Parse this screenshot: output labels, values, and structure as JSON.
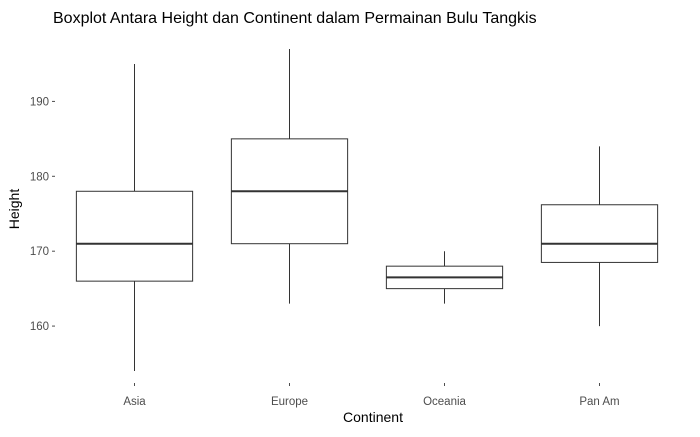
{
  "chart_data": {
    "type": "boxplot",
    "title": "Boxplot Antara Height dan Continent dalam Permainan Bulu Tangkis",
    "xlabel": "Continent",
    "ylabel": "Height",
    "categories": [
      "Asia",
      "Europe",
      "Oceania",
      "Pan Am"
    ],
    "boxes": [
      {
        "category": "Asia",
        "min": 154,
        "q1": 166,
        "median": 171,
        "q3": 178,
        "max": 195
      },
      {
        "category": "Europe",
        "min": 163,
        "q1": 171,
        "median": 178,
        "q3": 185,
        "max": 197
      },
      {
        "category": "Oceania",
        "min": 163,
        "q1": 165,
        "median": 166.5,
        "q3": 168,
        "max": 170
      },
      {
        "category": "Pan Am",
        "min": 160,
        "q1": 168.5,
        "median": 171,
        "q3": 176.2,
        "max": 184
      }
    ],
    "yticks": [
      160,
      170,
      180,
      190
    ],
    "ylim": [
      152.8,
      198.2
    ],
    "grid": false,
    "legend": "none",
    "colors": {
      "box_stroke": "#333333",
      "box_fill": "#ffffff",
      "tick_text": "#4d4d4d",
      "axis_text": "#000000"
    }
  }
}
